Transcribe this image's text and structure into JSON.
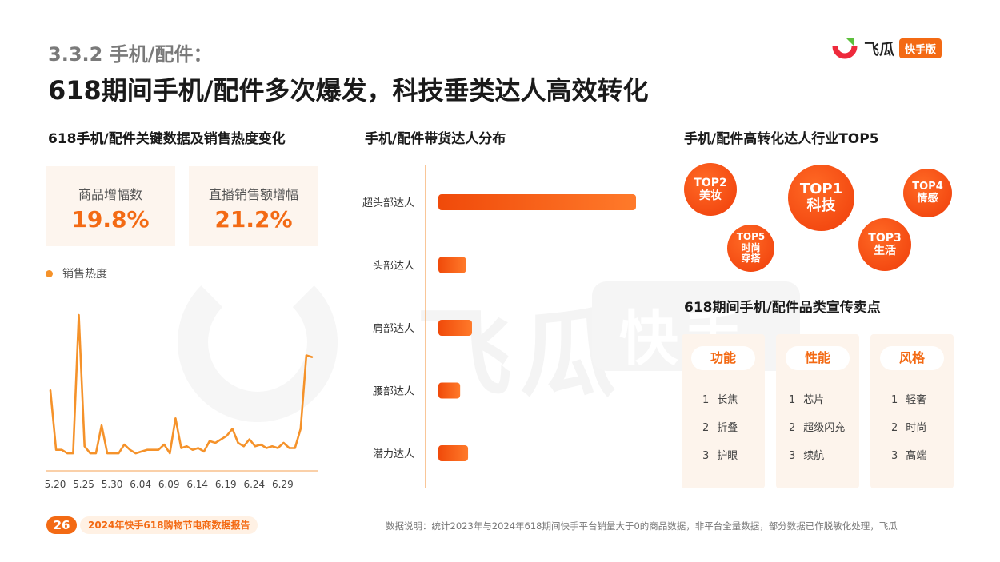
{
  "header": {
    "section": "3.3.2 手机/配件：",
    "title": "618期间手机/配件多次爆发，科技垂类达人高效转化"
  },
  "logo": {
    "name": "飞瓜",
    "badge": "快手版"
  },
  "watermark": {
    "text": "飞瓜",
    "badge": "快手版"
  },
  "left": {
    "title": "618手机/配件关键数据及销售热度变化",
    "kpis": [
      {
        "label": "商品增幅数",
        "value": "19.8%"
      },
      {
        "label": "直播销售额增幅",
        "value": "21.2%"
      }
    ],
    "legend": "销售热度"
  },
  "middle": {
    "title": "手机/配件带货达人分布"
  },
  "right": {
    "top5_title": "手机/配件高转化达人行业TOP5",
    "bubbles": [
      {
        "rank": "TOP1",
        "name": "科技"
      },
      {
        "rank": "TOP2",
        "name": "美妆"
      },
      {
        "rank": "TOP3",
        "name": "生活"
      },
      {
        "rank": "TOP4",
        "name": "情感"
      },
      {
        "rank": "TOP5",
        "name": "时尚穿搭",
        "line1": "时尚",
        "line2": "穿搭"
      }
    ],
    "selling_title": "618期间手机/配件品类宣传卖点",
    "cards": [
      {
        "title": "功能",
        "items": [
          {
            "n": "1",
            "t": "长焦"
          },
          {
            "n": "2",
            "t": "折叠"
          },
          {
            "n": "3",
            "t": "护眼"
          }
        ]
      },
      {
        "title": "性能",
        "items": [
          {
            "n": "1",
            "t": "芯片"
          },
          {
            "n": "2",
            "t": "超级闪充"
          },
          {
            "n": "3",
            "t": "续航"
          }
        ]
      },
      {
        "title": "风格",
        "items": [
          {
            "n": "1",
            "t": "轻奢"
          },
          {
            "n": "2",
            "t": "时尚"
          },
          {
            "n": "3",
            "t": "高端"
          }
        ]
      }
    ]
  },
  "footer": {
    "page": "26",
    "report": "2024年快手618购物节电商数据报告",
    "note": "数据说明：统计2023年与2024年618期间快手平台销量大于0的商品数据，非平台全量数据，部分数据已作脱敏化处理，飞瓜"
  },
  "colors": {
    "accent": "#f36a14",
    "line": "#f5922a",
    "bar_start": "#ff7a2a",
    "bar_end": "#f04a0a"
  },
  "chart_data": [
    {
      "type": "line",
      "series": [
        {
          "name": "销售热度",
          "values": [
            46,
            12,
            12,
            10,
            10,
            89,
            14,
            10,
            10,
            26,
            10,
            10,
            10,
            15,
            12,
            10,
            11,
            12,
            12,
            12,
            15,
            10,
            30,
            13,
            14,
            12,
            13,
            11,
            17,
            16,
            18,
            20,
            24,
            16,
            14,
            18,
            14,
            15,
            13,
            14,
            13,
            16,
            13,
            13,
            24,
            66,
            65
          ]
        }
      ],
      "x_tick_labels": [
        "5.20",
        "5.25",
        "5.30",
        "6.04",
        "6.09",
        "6.14",
        "6.19",
        "6.24",
        "6.29"
      ],
      "x_tick_index": [
        0,
        5,
        10,
        15,
        20,
        25,
        30,
        35,
        40
      ],
      "ylim": [
        0,
        100
      ],
      "grid": false
    },
    {
      "type": "bar",
      "orientation": "horizontal",
      "categories": [
        "超头部达人",
        "头部达人",
        "肩部达人",
        "腰部达人",
        "潜力达人"
      ],
      "values": [
        100,
        14,
        17,
        11,
        15
      ],
      "xlim": [
        0,
        100
      ],
      "grid": false
    }
  ]
}
